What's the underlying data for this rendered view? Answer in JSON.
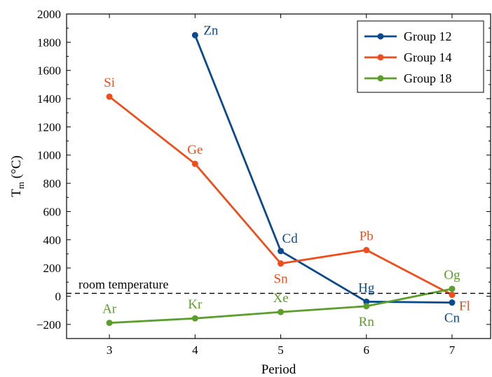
{
  "chart_data": {
    "type": "line",
    "xlabel": "Period",
    "ylabel": {
      "base": "T",
      "sub": "m",
      "rest": " (°C)"
    },
    "xlim": [
      2.5,
      7.45
    ],
    "ylim": [
      -300,
      2000
    ],
    "xticks": [
      3,
      4,
      5,
      6,
      7
    ],
    "yticks": [
      -200,
      0,
      200,
      400,
      600,
      800,
      1000,
      1200,
      1400,
      1600,
      1800,
      2000
    ],
    "ytick_labels": [
      "−200",
      "0",
      "200",
      "400",
      "600",
      "800",
      "1000",
      "1200",
      "1400",
      "1600",
      "1800",
      "2000"
    ],
    "grid": false,
    "legend_position": "top-right",
    "series": [
      {
        "name": "Group 12",
        "color": "#0b4a8c",
        "points": [
          {
            "x": 4,
            "y": 1850,
            "label": "Zn",
            "pos": "right"
          },
          {
            "x": 5,
            "y": 320,
            "label": "Cd",
            "pos": "upper-right"
          },
          {
            "x": 6,
            "y": -39,
            "label": "Hg",
            "pos": "above"
          },
          {
            "x": 7,
            "y": -45,
            "label": "Cn",
            "pos": "below"
          }
        ]
      },
      {
        "name": "Group 14",
        "color": "#f04d1c",
        "points": [
          {
            "x": 3,
            "y": 1414,
            "label": "Si",
            "pos": "above"
          },
          {
            "x": 4,
            "y": 938,
            "label": "Ge",
            "pos": "above"
          },
          {
            "x": 5,
            "y": 232,
            "label": "Sn",
            "pos": "below"
          },
          {
            "x": 6,
            "y": 327,
            "label": "Pb",
            "pos": "above"
          },
          {
            "x": 7,
            "y": 10,
            "label": "Fl",
            "pos": "lower-right"
          }
        ]
      },
      {
        "name": "Group 18",
        "color": "#5c9e2c",
        "points": [
          {
            "x": 3,
            "y": -189,
            "label": "Ar",
            "pos": "above"
          },
          {
            "x": 4,
            "y": -157,
            "label": "Kr",
            "pos": "above"
          },
          {
            "x": 5,
            "y": -112,
            "label": "Xe",
            "pos": "above"
          },
          {
            "x": 6,
            "y": -71,
            "label": "Rn",
            "pos": "below"
          },
          {
            "x": 7,
            "y": 52,
            "label": "Og",
            "pos": "above"
          }
        ]
      }
    ],
    "reference_line": {
      "y": 20,
      "label": "room temperature",
      "style": "dashed"
    }
  }
}
